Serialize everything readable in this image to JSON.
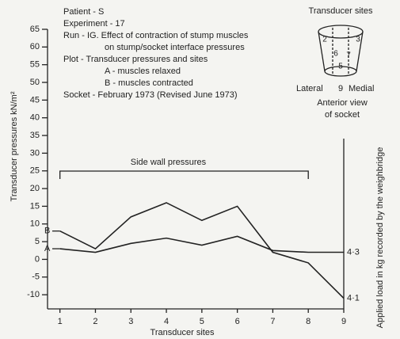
{
  "chart_data": {
    "type": "line",
    "notes": [
      "Patient - S",
      "Experiment - 17",
      "Run - IG. Effect of contraction of stump muscles",
      "on stump/socket interface pressures",
      "Plot - Transducer pressures and sites",
      "A - muscles relaxed",
      "B - muscles contracted",
      "Socket - February 1973 (Revised June 1973)"
    ],
    "x_label": "Transducer sites",
    "y_label": "Transducer pressures kN/m²",
    "y2_label": "Applied load in kg recorded by the weighbridge",
    "bracket_label": "Side wall pressures",
    "bracket_range": [
      1,
      8
    ],
    "load_labels": [
      {
        "text": "4·3",
        "at": 2
      },
      {
        "text": "4·1",
        "at": -11
      }
    ],
    "inset": {
      "title": "Transducer sites",
      "digits": [
        "2",
        "3",
        "6",
        "7",
        "5"
      ],
      "lateral": "Lateral",
      "medial_digit": "9",
      "medial": "Medial",
      "caption": [
        "Anterior view",
        "of socket"
      ]
    },
    "x": [
      1,
      2,
      3,
      4,
      5,
      6,
      7,
      8,
      9
    ],
    "series": [
      {
        "name": "A",
        "color": "#222222",
        "values": [
          3,
          2,
          4.5,
          6,
          4,
          6.5,
          2.5,
          2,
          2
        ]
      },
      {
        "name": "B",
        "color": "#222222",
        "values": [
          8,
          3,
          12,
          16,
          11,
          15,
          2,
          -1,
          -11
        ]
      }
    ],
    "xlim": [
      0.65,
      9
    ],
    "xticks": [
      1,
      2,
      3,
      4,
      5,
      6,
      7,
      8,
      9
    ],
    "ylim": [
      -14,
      65
    ],
    "yticks": [
      -10,
      -5,
      0,
      5,
      10,
      15,
      20,
      25,
      30,
      35,
      40,
      45,
      50,
      55,
      60,
      65
    ]
  }
}
